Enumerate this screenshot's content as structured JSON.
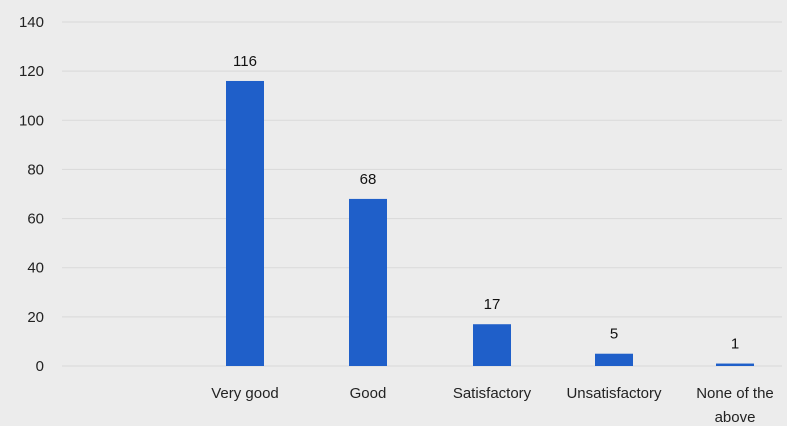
{
  "chart_data": {
    "type": "bar",
    "categories": [
      [
        "Very good"
      ],
      [
        "Good"
      ],
      [
        "Satisfactory"
      ],
      [
        "Unsatisfactory"
      ],
      [
        "None of the",
        "above"
      ]
    ],
    "values": [
      116,
      68,
      17,
      5,
      1
    ],
    "data_labels": [
      "116",
      "68",
      "17",
      "5",
      "1"
    ],
    "yticks": [
      "0",
      "20",
      "40",
      "60",
      "80",
      "100",
      "120",
      "140"
    ],
    "ylim": [
      0,
      140
    ],
    "grid": true,
    "legend": "none",
    "bar_color": "#1f5fc9",
    "title": "",
    "xlabel": "",
    "ylabel": ""
  }
}
